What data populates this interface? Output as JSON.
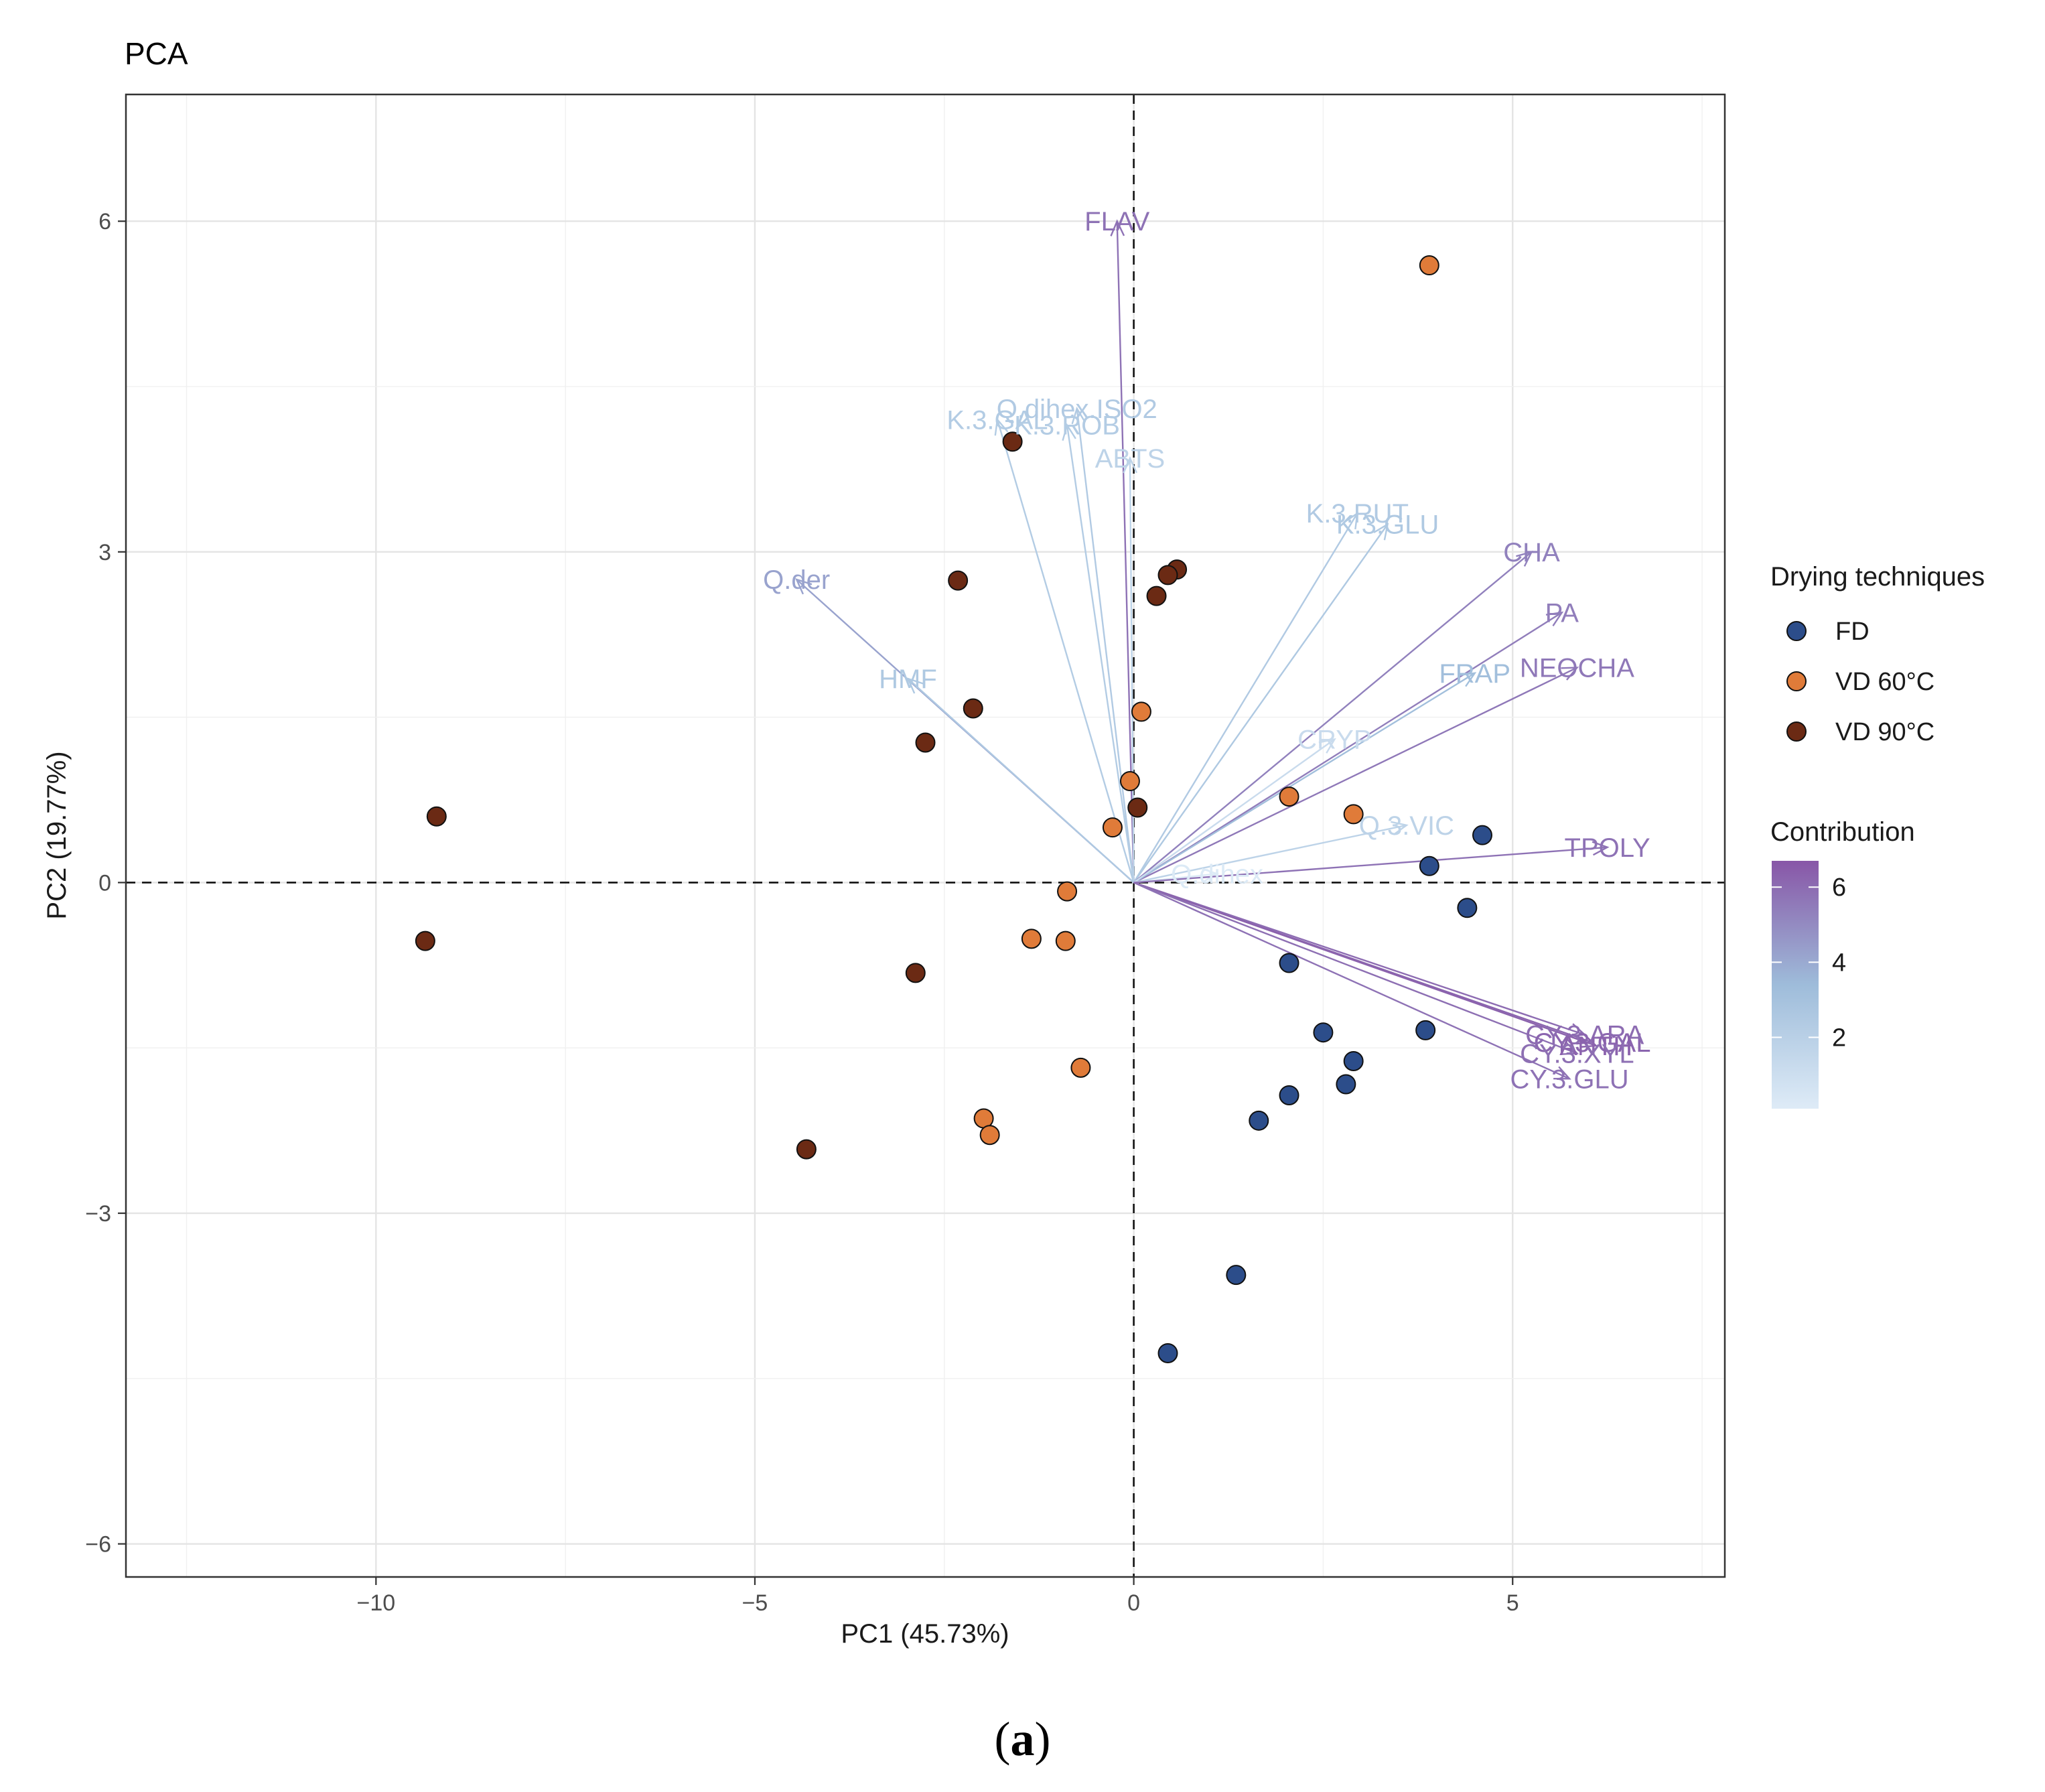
{
  "chart_data": {
    "type": "scatter",
    "title": "PCA",
    "xlabel": "PC1 (45.73%)",
    "ylabel": "PC2 (19.77%)",
    "xlim": [
      -13.3,
      7.8
    ],
    "ylim": [
      -6.3,
      7.15
    ],
    "x_ticks": [
      -10,
      -5,
      0,
      5
    ],
    "y_ticks": [
      -6,
      -3,
      0,
      3,
      6
    ],
    "x_tick_labels": [
      "−10",
      "−5",
      "0",
      "5"
    ],
    "y_tick_labels": [
      "−6",
      "−3",
      "0",
      "3",
      "6"
    ],
    "grid": true,
    "reference_lines": {
      "x": 0,
      "y": 0,
      "style": "dashed"
    },
    "groups_legend": {
      "title": "Drying techniques",
      "entries": [
        {
          "key": "FD",
          "label": "FD",
          "color": "#2c4d8a"
        },
        {
          "key": "VD60",
          "label": "VD 60°C",
          "color": "#e07b39"
        },
        {
          "key": "VD90",
          "label": "VD 90°C",
          "color": "#6b2a14"
        }
      ]
    },
    "contribution_legend": {
      "title": "Contribution",
      "ticks": [
        2,
        4,
        6
      ],
      "tick_labels": [
        "2",
        "4",
        "6"
      ],
      "range": [
        0.1,
        6.7
      ],
      "color_low": "#deebf7",
      "color_mid": "#9ebcda",
      "color_high": "#8856a7"
    },
    "points": [
      {
        "group": "FD",
        "x": 4.6,
        "y": 0.43
      },
      {
        "group": "FD",
        "x": 3.9,
        "y": 0.15
      },
      {
        "group": "FD",
        "x": 4.4,
        "y": -0.23
      },
      {
        "group": "FD",
        "x": 2.05,
        "y": -0.73
      },
      {
        "group": "FD",
        "x": 2.5,
        "y": -1.36
      },
      {
        "group": "FD",
        "x": 3.85,
        "y": -1.34
      },
      {
        "group": "FD",
        "x": 2.9,
        "y": -1.62
      },
      {
        "group": "FD",
        "x": 2.8,
        "y": -1.83
      },
      {
        "group": "FD",
        "x": 2.05,
        "y": -1.93
      },
      {
        "group": "FD",
        "x": 1.65,
        "y": -2.16
      },
      {
        "group": "FD",
        "x": 1.35,
        "y": -3.56
      },
      {
        "group": "FD",
        "x": 0.45,
        "y": -4.27
      },
      {
        "group": "VD60",
        "x": 3.9,
        "y": 5.6
      },
      {
        "group": "VD60",
        "x": 0.1,
        "y": 1.55
      },
      {
        "group": "VD60",
        "x": -0.05,
        "y": 0.92
      },
      {
        "group": "VD60",
        "x": 2.05,
        "y": 0.78
      },
      {
        "group": "VD60",
        "x": 2.9,
        "y": 0.62
      },
      {
        "group": "VD60",
        "x": -0.28,
        "y": 0.5
      },
      {
        "group": "VD60",
        "x": -0.88,
        "y": -0.08
      },
      {
        "group": "VD60",
        "x": -1.35,
        "y": -0.51
      },
      {
        "group": "VD60",
        "x": -0.9,
        "y": -0.53
      },
      {
        "group": "VD60",
        "x": -0.7,
        "y": -1.68
      },
      {
        "group": "VD60",
        "x": -1.98,
        "y": -2.14
      },
      {
        "group": "VD60",
        "x": -1.9,
        "y": -2.29
      },
      {
        "group": "VD90",
        "x": -1.6,
        "y": 4.0
      },
      {
        "group": "VD90",
        "x": 0.57,
        "y": 2.84
      },
      {
        "group": "VD90",
        "x": 0.45,
        "y": 2.79
      },
      {
        "group": "VD90",
        "x": -2.32,
        "y": 2.74
      },
      {
        "group": "VD90",
        "x": 0.3,
        "y": 2.6
      },
      {
        "group": "VD90",
        "x": -2.12,
        "y": 1.58
      },
      {
        "group": "VD90",
        "x": -2.75,
        "y": 1.27
      },
      {
        "group": "VD90",
        "x": 0.05,
        "y": 0.68
      },
      {
        "group": "VD90",
        "x": -9.2,
        "y": 0.6
      },
      {
        "group": "VD90",
        "x": -9.35,
        "y": -0.53
      },
      {
        "group": "VD90",
        "x": -2.88,
        "y": -0.82
      },
      {
        "group": "VD90",
        "x": -4.32,
        "y": -2.42
      }
    ],
    "variables": [
      {
        "name": "FLAV",
        "x": -0.22,
        "y": 6.0,
        "contribution": 5.8,
        "label": "FLAV"
      },
      {
        "name": "K.3.GAL",
        "x": -1.8,
        "y": 4.2,
        "contribution": 2.3,
        "label": "K.3.GAL"
      },
      {
        "name": "Q.dihex.ISO2",
        "x": -0.75,
        "y": 4.3,
        "contribution": 2.4,
        "label": "Q.dihex.ISO2"
      },
      {
        "name": "K.3.ROB",
        "x": -0.88,
        "y": 4.15,
        "contribution": 2.3,
        "label": "K.3.ROB"
      },
      {
        "name": "ABTS",
        "x": -0.05,
        "y": 3.85,
        "contribution": 1.8,
        "label": "ABTS"
      },
      {
        "name": "K.3.RUT",
        "x": 2.95,
        "y": 3.35,
        "contribution": 2.4,
        "label": "K.3.RUT"
      },
      {
        "name": "K.3.GLU",
        "x": 3.35,
        "y": 3.25,
        "contribution": 2.5,
        "label": "K.3.GLU"
      },
      {
        "name": "CHA",
        "x": 5.25,
        "y": 3.0,
        "contribution": 5.3,
        "label": "CHA"
      },
      {
        "name": "PA",
        "x": 5.65,
        "y": 2.45,
        "contribution": 5.4,
        "label": "PA"
      },
      {
        "name": "NEOCHA",
        "x": 5.85,
        "y": 1.95,
        "contribution": 5.6,
        "label": "NEOCHA"
      },
      {
        "name": "FRAP",
        "x": 4.5,
        "y": 1.9,
        "contribution": 3.2,
        "label": "FRAP"
      },
      {
        "name": "CRYP",
        "x": 2.65,
        "y": 1.3,
        "contribution": 1.2,
        "label": "CRYP"
      },
      {
        "name": "Q.3.VIC",
        "x": 3.6,
        "y": 0.52,
        "contribution": 1.8,
        "label": "Q.3.VIC"
      },
      {
        "name": "Q.dihex",
        "x": 1.1,
        "y": 0.08,
        "contribution": 0.2,
        "label": "Q.dihex"
      },
      {
        "name": "TPOLY",
        "x": 6.25,
        "y": 0.32,
        "contribution": 5.8,
        "label": "TPOLY"
      },
      {
        "name": "Q.der",
        "x": -4.45,
        "y": 2.75,
        "contribution": 4.2,
        "label": "Q.der"
      },
      {
        "name": "HMF",
        "x": -2.98,
        "y": 1.85,
        "contribution": 2.5,
        "label": "HMF"
      },
      {
        "name": "CY.3.GAL",
        "x": 6.05,
        "y": -1.45,
        "contribution": 6.2,
        "label": "CY.3.GAL"
      },
      {
        "name": "CY.3.ARA",
        "x": 5.95,
        "y": -1.38,
        "contribution": 6.0,
        "label": "CY.3.ARA"
      },
      {
        "name": "ANTH",
        "x": 6.1,
        "y": -1.48,
        "contribution": 6.3,
        "label": "ANTH"
      },
      {
        "name": "CY.3.XYL",
        "x": 5.85,
        "y": -1.55,
        "contribution": 5.9,
        "label": "CY.3.XYL"
      },
      {
        "name": "CY.3.GLU",
        "x": 5.75,
        "y": -1.78,
        "contribution": 5.8,
        "label": "CY.3.GLU"
      }
    ]
  },
  "caption": {
    "open": "(",
    "letter": "a",
    "close": ")"
  }
}
